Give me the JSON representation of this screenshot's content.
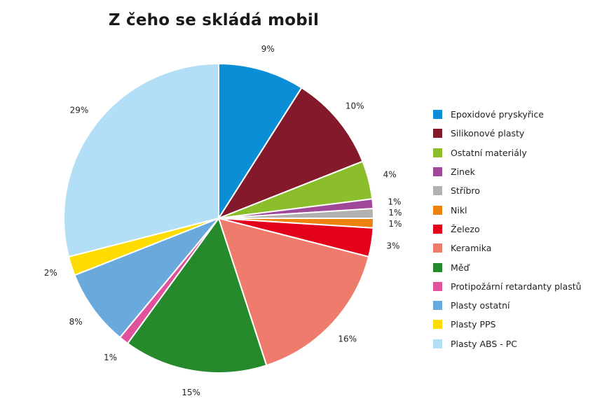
{
  "chart_data": {
    "type": "pie",
    "title": "Z čeho se skládá mobil",
    "legend_position": "right",
    "slices": [
      {
        "name": "Epoxidové pryskyřice",
        "value": 9,
        "label": "9%",
        "color": "#0a8fd6"
      },
      {
        "name": "Silikonové plasty",
        "value": 10,
        "label": "10%",
        "color": "#84192b"
      },
      {
        "name": "Ostatní materiály",
        "value": 4,
        "label": "4%",
        "color": "#8cbd2a"
      },
      {
        "name": "Zinek",
        "value": 1,
        "label": "1%",
        "color": "#a0489a"
      },
      {
        "name": "Stříbro",
        "value": 1,
        "label": "1%",
        "color": "#b1b1b1"
      },
      {
        "name": "Nikl",
        "value": 1,
        "label": "1%",
        "color": "#ee8211"
      },
      {
        "name": "Železo",
        "value": 3,
        "label": "3%",
        "color": "#e3001b"
      },
      {
        "name": "Keramika",
        "value": 16,
        "label": "16%",
        "color": "#ef7b6c"
      },
      {
        "name": "Měď",
        "value": 15,
        "label": "15%",
        "color": "#268a2c"
      },
      {
        "name": "Protipožární retardanty plastů",
        "value": 1,
        "label": "1%",
        "color": "#e0529c"
      },
      {
        "name": "Plasty ostatní",
        "value": 8,
        "label": "8%",
        "color": "#6aa9dc"
      },
      {
        "name": "Plasty PPS",
        "value": 2,
        "label": "2%",
        "color": "#ffdc00"
      },
      {
        "name": "Plasty ABS - PC",
        "value": 29,
        "label": "29%",
        "color": "#b3dff6"
      }
    ]
  }
}
